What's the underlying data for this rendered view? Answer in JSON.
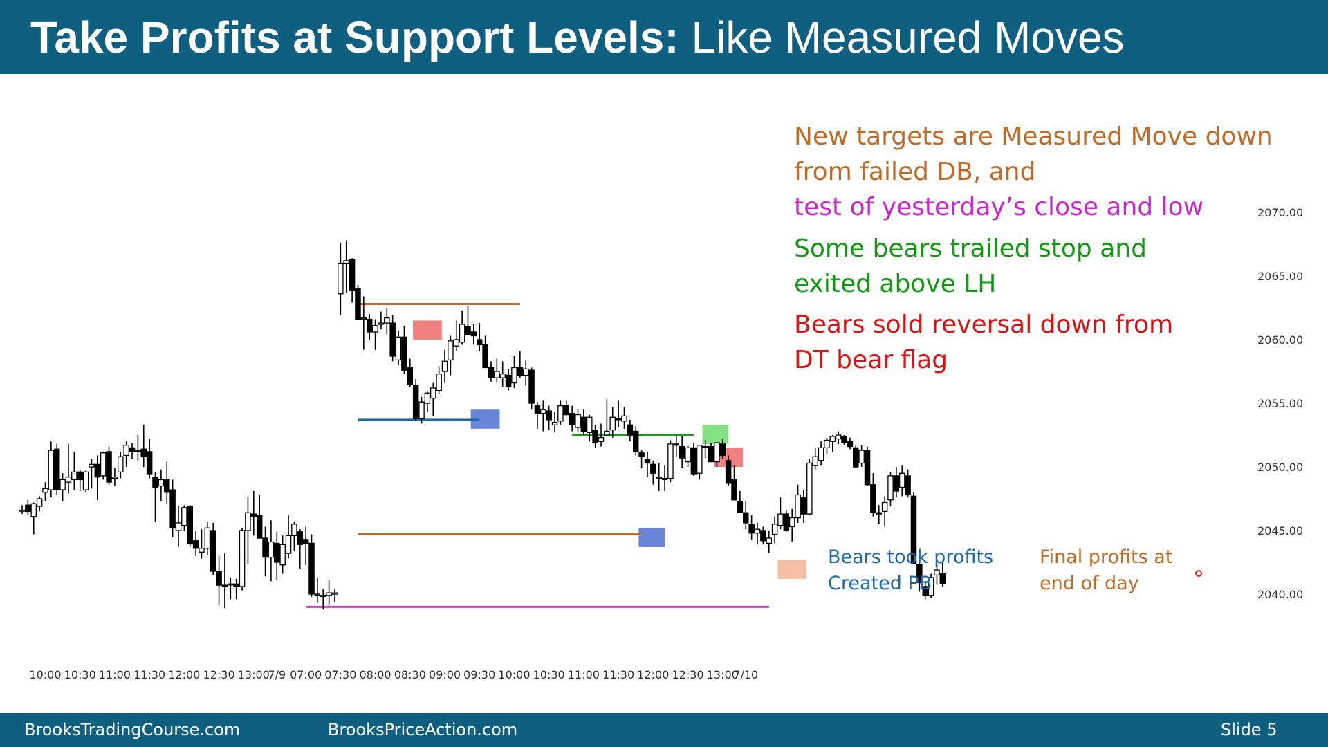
{
  "title": {
    "bold": "Take Profits at Support Levels:",
    "normal": " Like Measured Moves"
  },
  "footer": {
    "left": "BrooksTradingCourse.com",
    "center": "BrooksPriceAction.com",
    "right": "Slide  5"
  },
  "colors": {
    "header": "#0f5f80",
    "bar_up": "#ffffff",
    "bar_down": "#000000",
    "mm_line": "#c06a26",
    "support_line": "#1d6aa8",
    "close_line": "#cc44bb",
    "lh_line": "#179a17",
    "red_zone": "#ee6a6a",
    "blue_zone": "#4f70d0",
    "green_zone": "#6fdc6f",
    "orange_zone": "#f3b595"
  },
  "annotations": {
    "mm_target_1": "New targets are Measured Move down",
    "mm_target_2": "from failed DB, and",
    "close_low": "test of yesterday’s close and low",
    "trailed_1": "Some bears trailed stop and",
    "trailed_2": "exited above LH",
    "sold_1": "Bears sold reversal down from",
    "sold_2": "DT bear flag",
    "profits_1": "Bears took profits",
    "profits_2": "Created PB",
    "final_1": "Final profits at",
    "final_2": "end of day"
  },
  "chart_data": {
    "type": "candlestick",
    "y_ticks": [
      "2040.00",
      "2045.00",
      "2050.00",
      "2055.00",
      "2060.00",
      "2065.00",
      "2070.00"
    ],
    "ylim": [
      2037.5,
      2075
    ],
    "x_ticks": [
      {
        "label": "10:00",
        "bar": 4
      },
      {
        "label": "10:30",
        "bar": 10
      },
      {
        "label": "11:00",
        "bar": 16
      },
      {
        "label": "11:30",
        "bar": 22
      },
      {
        "label": "12:00",
        "bar": 28
      },
      {
        "label": "12:30",
        "bar": 34
      },
      {
        "label": "13:00",
        "bar": 40
      },
      {
        "label": "7/9",
        "bar": 44
      },
      {
        "label": "07:00",
        "bar": 49
      },
      {
        "label": "07:30",
        "bar": 55
      },
      {
        "label": "08:00",
        "bar": 61
      },
      {
        "label": "08:30",
        "bar": 67
      },
      {
        "label": "09:00",
        "bar": 73
      },
      {
        "label": "09:30",
        "bar": 79
      },
      {
        "label": "10:00",
        "bar": 85
      },
      {
        "label": "10:30",
        "bar": 91
      },
      {
        "label": "11:00",
        "bar": 97
      },
      {
        "label": "11:30",
        "bar": 103
      },
      {
        "label": "12:00",
        "bar": 109
      },
      {
        "label": "12:30",
        "bar": 115
      },
      {
        "label": "13:00",
        "bar": 121
      },
      {
        "label": "7/10",
        "bar": 125
      }
    ],
    "bars": [
      [
        2046.6,
        2047.0,
        2046.3,
        2046.6
      ],
      [
        2047.0,
        2047.4,
        2046.2,
        2046.5
      ],
      [
        2046.1,
        2047.2,
        2044.7,
        2047.1
      ],
      [
        2046.9,
        2047.7,
        2046.5,
        2047.5
      ],
      [
        2048.0,
        2048.8,
        2047.3,
        2048.3
      ],
      [
        2048.2,
        2052.0,
        2047.6,
        2051.3
      ],
      [
        2051.4,
        2051.8,
        2047.8,
        2048.2
      ],
      [
        2048.2,
        2049.5,
        2047.3,
        2049.0
      ],
      [
        2048.8,
        2051.8,
        2047.9,
        2049.2
      ],
      [
        2049.0,
        2051.2,
        2048.2,
        2049.6
      ],
      [
        2049.6,
        2049.8,
        2048.1,
        2049.0
      ],
      [
        2048.2,
        2049.7,
        2048.0,
        2049.6
      ],
      [
        2050.0,
        2050.6,
        2048.3,
        2050.2
      ],
      [
        2050.2,
        2050.9,
        2047.4,
        2049.2
      ],
      [
        2049.3,
        2051.2,
        2049.0,
        2051.1
      ],
      [
        2051.2,
        2051.6,
        2048.6,
        2048.8
      ],
      [
        2049.1,
        2049.9,
        2048.5,
        2049.2
      ],
      [
        2049.6,
        2051.2,
        2049.1,
        2050.8
      ],
      [
        2050.9,
        2052.0,
        2050.0,
        2051.7
      ],
      [
        2051.5,
        2051.9,
        2050.6,
        2051.2
      ],
      [
        2051.3,
        2052.5,
        2050.5,
        2051.2
      ],
      [
        2051.4,
        2053.3,
        2050.0,
        2050.8
      ],
      [
        2051.2,
        2052.2,
        2049.1,
        2049.4
      ],
      [
        2049.2,
        2049.6,
        2045.7,
        2048.4
      ],
      [
        2048.5,
        2049.8,
        2047.3,
        2049.0
      ],
      [
        2049.0,
        2050.4,
        2047.1,
        2048.0
      ],
      [
        2048.2,
        2049.0,
        2044.5,
        2045.2
      ],
      [
        2045.0,
        2046.9,
        2043.7,
        2045.6
      ],
      [
        2045.4,
        2047.0,
        2045.0,
        2046.8
      ],
      [
        2046.9,
        2047.0,
        2043.7,
        2044.0
      ],
      [
        2044.2,
        2045.0,
        2043.0,
        2043.6
      ],
      [
        2043.3,
        2045.1,
        2042.8,
        2043.6
      ],
      [
        2043.6,
        2045.7,
        2043.1,
        2045.2
      ],
      [
        2045.0,
        2045.6,
        2041.5,
        2041.8
      ],
      [
        2041.8,
        2043.0,
        2039.1,
        2040.7
      ],
      [
        2040.7,
        2043.2,
        2038.9,
        2040.6
      ],
      [
        2040.8,
        2041.3,
        2039.6,
        2040.8
      ],
      [
        2040.8,
        2041.2,
        2039.6,
        2040.6
      ],
      [
        2040.6,
        2045.2,
        2040.3,
        2045.0
      ],
      [
        2045.0,
        2047.6,
        2042.4,
        2046.4
      ],
      [
        2046.3,
        2048.1,
        2044.6,
        2046.1
      ],
      [
        2046.2,
        2047.8,
        2044.9,
        2044.4
      ],
      [
        2044.4,
        2045.3,
        2041.4,
        2042.9
      ],
      [
        2042.9,
        2045.8,
        2041.0,
        2044.1
      ],
      [
        2044.0,
        2044.9,
        2041.1,
        2042.5
      ],
      [
        2042.3,
        2044.6,
        2041.6,
        2043.9
      ],
      [
        2043.2,
        2046.2,
        2042.8,
        2044.6
      ],
      [
        2044.6,
        2045.7,
        2043.4,
        2045.5
      ],
      [
        2044.9,
        2045.1,
        2042.0,
        2043.9
      ],
      [
        2044.3,
        2045.3,
        2042.3,
        2044.0
      ],
      [
        2044.0,
        2044.7,
        2039.8,
        2040.0
      ],
      [
        2040.0,
        2041.3,
        2039.3,
        2040.0
      ],
      [
        2039.9,
        2040.4,
        2038.8,
        2039.9
      ],
      [
        2039.9,
        2041.1,
        2039.2,
        2040.1
      ],
      [
        2040.0,
        2040.4,
        2039.4,
        2040.1
      ],
      [
        2063.6,
        2067.6,
        2061.9,
        2066.0
      ],
      [
        2066.0,
        2067.8,
        2063.7,
        2066.2
      ],
      [
        2066.3,
        2066.4,
        2062.9,
        2063.9
      ],
      [
        2064.0,
        2064.3,
        2061.6,
        2061.6
      ],
      [
        2061.7,
        2063.4,
        2059.2,
        2061.7
      ],
      [
        2061.6,
        2062.0,
        2060.0,
        2060.6
      ],
      [
        2060.6,
        2061.6,
        2059.2,
        2061.1
      ],
      [
        2061.2,
        2062.2,
        2060.8,
        2061.3
      ],
      [
        2061.3,
        2062.5,
        2060.4,
        2061.7
      ],
      [
        2061.3,
        2061.9,
        2058.3,
        2058.7
      ],
      [
        2058.4,
        2060.7,
        2058.0,
        2060.2
      ],
      [
        2060.2,
        2061.1,
        2057.3,
        2057.6
      ],
      [
        2057.8,
        2058.5,
        2056.3,
        2056.5
      ],
      [
        2056.4,
        2056.9,
        2053.6,
        2053.8
      ],
      [
        2053.8,
        2055.5,
        2053.4,
        2055.1
      ],
      [
        2055.0,
        2055.9,
        2054.3,
        2055.8
      ],
      [
        2055.4,
        2056.6,
        2054.0,
        2056.2
      ],
      [
        2056.0,
        2057.9,
        2055.7,
        2057.3
      ],
      [
        2057.5,
        2059.2,
        2056.6,
        2058.3
      ],
      [
        2058.4,
        2060.3,
        2057.2,
        2059.9
      ],
      [
        2059.5,
        2061.5,
        2059.1,
        2060.0
      ],
      [
        2059.8,
        2062.3,
        2059.6,
        2061.2
      ],
      [
        2061.0,
        2062.6,
        2060.6,
        2060.4
      ],
      [
        2060.6,
        2061.2,
        2059.6,
        2060.3
      ],
      [
        2060.0,
        2061.3,
        2059.1,
        2059.6
      ],
      [
        2059.6,
        2060.3,
        2057.8,
        2057.8
      ],
      [
        2057.8,
        2058.3,
        2056.7,
        2057.0
      ],
      [
        2057.0,
        2058.5,
        2056.6,
        2057.5
      ],
      [
        2057.0,
        2058.3,
        2056.3,
        2057.3
      ],
      [
        2057.2,
        2057.7,
        2056.0,
        2056.3
      ],
      [
        2056.6,
        2058.7,
        2056.2,
        2057.8
      ],
      [
        2057.8,
        2059.1,
        2057.0,
        2057.2
      ],
      [
        2057.2,
        2058.4,
        2056.4,
        2057.7
      ],
      [
        2057.6,
        2057.8,
        2054.5,
        2055.0
      ],
      [
        2054.8,
        2055.1,
        2053.0,
        2054.2
      ],
      [
        2054.2,
        2055.2,
        2052.8,
        2054.5
      ],
      [
        2054.4,
        2054.8,
        2052.9,
        2053.7
      ],
      [
        2053.3,
        2054.3,
        2052.7,
        2053.5
      ],
      [
        2053.6,
        2055.2,
        2053.3,
        2054.8
      ],
      [
        2054.8,
        2055.2,
        2054.0,
        2054.1
      ],
      [
        2054.2,
        2054.8,
        2052.8,
        2053.3
      ],
      [
        2053.1,
        2054.5,
        2052.7,
        2054.1
      ],
      [
        2053.9,
        2054.5,
        2052.5,
        2052.8
      ],
      [
        2052.7,
        2054.1,
        2052.0,
        2053.9
      ],
      [
        2052.9,
        2053.3,
        2051.5,
        2051.9
      ],
      [
        2052.0,
        2053.4,
        2051.6,
        2052.3
      ],
      [
        2052.5,
        2055.3,
        2052.4,
        2052.8
      ],
      [
        2052.9,
        2054.7,
        2052.3,
        2053.9
      ],
      [
        2053.8,
        2055.2,
        2053.1,
        2053.7
      ],
      [
        2053.6,
        2054.7,
        2053.0,
        2054.0
      ],
      [
        2053.3,
        2053.7,
        2052.0,
        2052.5
      ],
      [
        2052.8,
        2053.2,
        2050.9,
        2051.2
      ],
      [
        2051.1,
        2051.3,
        2049.9,
        2050.8
      ],
      [
        2050.6,
        2051.2,
        2049.2,
        2050.3
      ],
      [
        2050.2,
        2050.5,
        2048.6,
        2049.5
      ],
      [
        2049.2,
        2050.3,
        2048.1,
        2049.2
      ],
      [
        2049.1,
        2050.1,
        2048.1,
        2049.0
      ],
      [
        2049.1,
        2052.1,
        2048.8,
        2051.8
      ],
      [
        2051.8,
        2052.5,
        2050.8,
        2051.7
      ],
      [
        2051.6,
        2052.4,
        2049.9,
        2050.7
      ],
      [
        2050.4,
        2051.7,
        2050.0,
        2051.5
      ],
      [
        2051.5,
        2051.9,
        2049.3,
        2049.4
      ],
      [
        2049.5,
        2051.7,
        2049.0,
        2051.7
      ],
      [
        2051.6,
        2052.1,
        2050.7,
        2051.5
      ],
      [
        2051.6,
        2051.9,
        2050.4,
        2050.4
      ],
      [
        2050.4,
        2051.9,
        2050.0,
        2051.9
      ],
      [
        2051.8,
        2052.2,
        2050.6,
        2050.9
      ],
      [
        2050.5,
        2050.9,
        2048.5,
        2048.7
      ],
      [
        2049.0,
        2050.1,
        2047.4,
        2047.4
      ],
      [
        2047.3,
        2048.1,
        2046.4,
        2046.4
      ],
      [
        2046.4,
        2047.3,
        2045.1,
        2045.6
      ],
      [
        2045.5,
        2046.2,
        2044.3,
        2044.8
      ],
      [
        2044.8,
        2045.6,
        2043.9,
        2045.1
      ],
      [
        2045.0,
        2045.3,
        2043.9,
        2044.2
      ],
      [
        2044.0,
        2045.0,
        2043.2,
        2044.4
      ],
      [
        2044.7,
        2046.1,
        2044.0,
        2045.5
      ],
      [
        2045.4,
        2047.6,
        2045.1,
        2046.3
      ],
      [
        2046.3,
        2046.6,
        2044.9,
        2045.0
      ],
      [
        2045.3,
        2046.7,
        2044.1,
        2046.0
      ],
      [
        2046.0,
        2048.6,
        2045.6,
        2047.8
      ],
      [
        2047.6,
        2048.2,
        2045.6,
        2046.3
      ],
      [
        2046.3,
        2050.6,
        2046.2,
        2050.3
      ],
      [
        2050.1,
        2051.5,
        2049.8,
        2050.8
      ],
      [
        2050.5,
        2052.0,
        2050.1,
        2051.5
      ],
      [
        2051.5,
        2052.3,
        2051.0,
        2052.1
      ],
      [
        2052.0,
        2052.5,
        2051.2,
        2052.4
      ],
      [
        2052.2,
        2052.8,
        2051.8,
        2052.5
      ],
      [
        2052.4,
        2052.5,
        2051.7,
        2051.9
      ],
      [
        2052.0,
        2052.3,
        2051.4,
        2051.6
      ],
      [
        2051.5,
        2051.7,
        2049.9,
        2050.0
      ],
      [
        2050.3,
        2051.7,
        2050.0,
        2051.3
      ],
      [
        2051.3,
        2051.6,
        2048.5,
        2048.6
      ],
      [
        2048.6,
        2049.5,
        2046.1,
        2046.4
      ],
      [
        2046.4,
        2047.0,
        2045.5,
        2046.3
      ],
      [
        2046.5,
        2047.7,
        2045.3,
        2047.2
      ],
      [
        2047.4,
        2049.6,
        2046.9,
        2049.3
      ],
      [
        2049.3,
        2050.0,
        2047.6,
        2048.1
      ],
      [
        2048.4,
        2050.1,
        2047.7,
        2049.5
      ],
      [
        2049.3,
        2049.8,
        2047.6,
        2047.8
      ],
      [
        2047.7,
        2048.0,
        2042.4,
        2042.4
      ],
      [
        2042.3,
        2042.6,
        2040.2,
        2040.9
      ],
      [
        2040.6,
        2040.9,
        2039.6,
        2039.9
      ],
      [
        2039.9,
        2041.6,
        2039.7,
        2041.3
      ],
      [
        2041.5,
        2042.6,
        2040.8,
        2041.9
      ],
      [
        2041.6,
        2042.5,
        2040.6,
        2040.8
      ]
    ],
    "levels": [
      {
        "id": "mm-top-line",
        "y": 2062.8,
        "from": 58,
        "to": 86
      },
      {
        "id": "support-line",
        "y": 2053.7,
        "from": 58,
        "to": 79
      },
      {
        "id": "mm-target-line",
        "y": 2044.7,
        "from": 58,
        "to": 107
      },
      {
        "id": "lh-line",
        "y": 2052.5,
        "from": 95,
        "to": 116
      },
      {
        "id": "close-line",
        "y": 2039.0,
        "from": 49,
        "to": 129
      }
    ],
    "zones": [
      {
        "id": "zone-red-1",
        "y0": 2061.5,
        "y1": 2060.0,
        "from": 67.5,
        "to": 72.5
      },
      {
        "id": "zone-blue-1",
        "y0": 2054.5,
        "y1": 2053.0,
        "from": 77.5,
        "to": 82.5
      },
      {
        "id": "zone-green",
        "y0": 2053.3,
        "y1": 2051.8,
        "from": 117.5,
        "to": 122
      },
      {
        "id": "zone-red-2",
        "y0": 2051.5,
        "y1": 2050.0,
        "from": 119.5,
        "to": 124.5
      },
      {
        "id": "zone-blue-2",
        "y0": 2045.2,
        "y1": 2043.7,
        "from": 106.5,
        "to": 111
      },
      {
        "id": "zone-orange",
        "y0": 2042.7,
        "y1": 2041.2,
        "from": 130.5,
        "to": 135.5
      }
    ]
  }
}
